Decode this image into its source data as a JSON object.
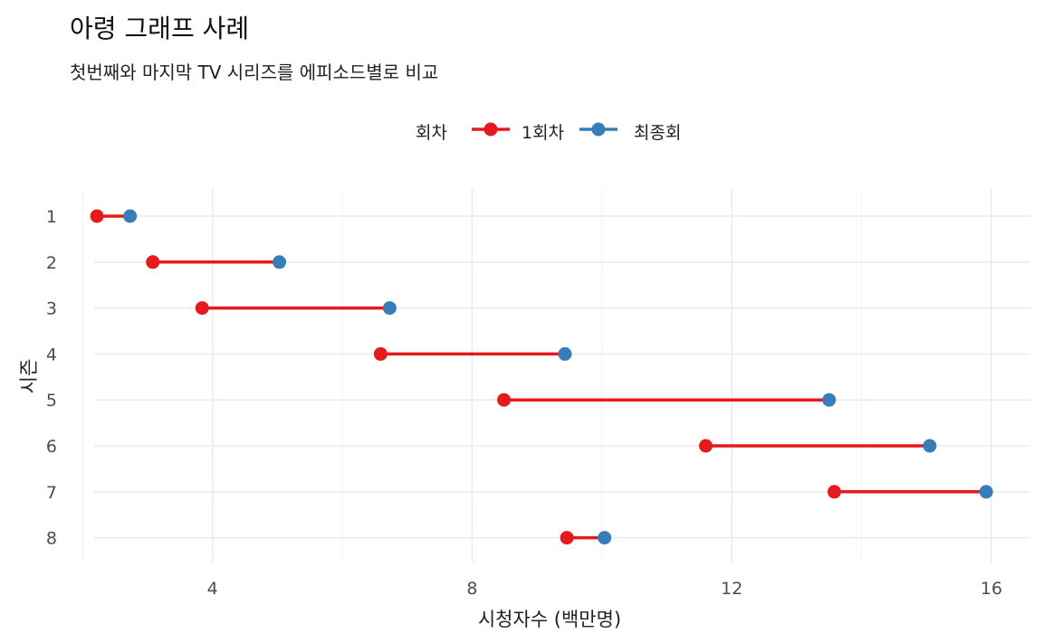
{
  "title": "아령 그래프 사례",
  "subtitle": "첫번째와 마지막 TV 시리즈를 에피소드별로 비교",
  "legend": {
    "title": "회차",
    "items": [
      {
        "label": "1회차",
        "color": "#e41a1c"
      },
      {
        "label": "최종회",
        "color": "#377eb8"
      }
    ]
  },
  "chart_data": {
    "type": "dumbbell",
    "xlabel": "시청자수 (백만명)",
    "ylabel": "시즌",
    "xlim": [
      1.8,
      16.6
    ],
    "xticks": [
      4,
      8,
      12,
      16
    ],
    "legend_position": "top",
    "grid": true,
    "categories": [
      "1",
      "2",
      "3",
      "4",
      "5",
      "6",
      "7",
      "8"
    ],
    "series": [
      {
        "name": "1회차",
        "color": "#e41a1c",
        "values": [
          2.22,
          3.08,
          3.84,
          6.59,
          8.49,
          11.6,
          13.58,
          9.46
        ]
      },
      {
        "name": "최종회",
        "color": "#377eb8",
        "values": [
          2.73,
          5.03,
          6.73,
          9.43,
          13.5,
          15.05,
          15.92,
          10.04
        ]
      }
    ]
  }
}
